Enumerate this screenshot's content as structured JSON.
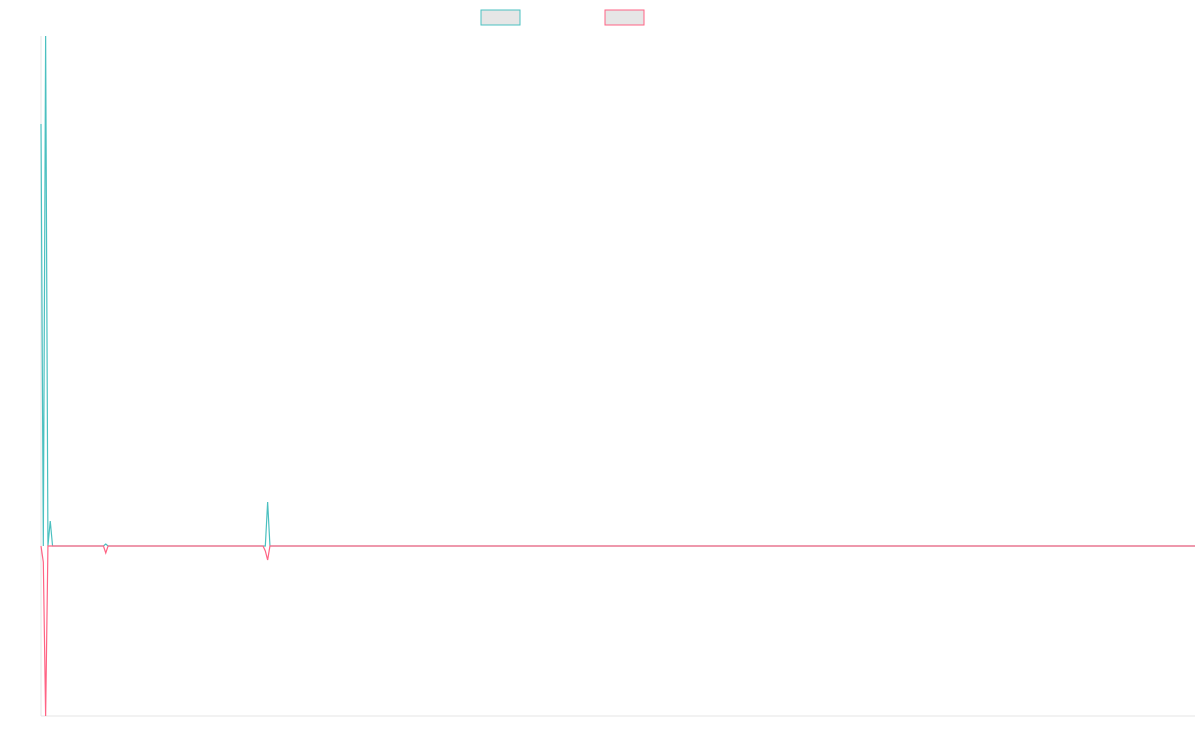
{
  "chart_data": {
    "type": "line",
    "title": "",
    "xlabel": "",
    "ylabel": "",
    "grid": false,
    "legend_position": "top-center",
    "x": [
      0,
      1,
      2,
      3,
      4,
      5,
      6,
      7,
      8,
      9,
      10,
      11,
      12,
      13,
      14,
      15,
      16,
      17,
      18,
      19,
      20,
      21,
      22,
      23,
      24,
      25,
      26,
      27,
      28,
      29,
      30,
      31,
      32,
      33,
      34,
      35,
      36,
      37,
      38,
      39,
      40,
      41,
      42,
      43,
      44,
      45,
      46,
      47,
      48,
      49,
      50,
      51,
      52,
      53,
      54,
      55,
      56,
      57,
      58,
      59,
      60,
      61,
      62,
      63,
      64,
      65,
      66,
      67,
      68,
      69,
      70,
      71,
      72,
      73,
      74,
      75,
      76,
      77,
      78,
      79,
      80,
      81,
      82,
      83,
      84,
      85,
      86,
      87,
      88,
      89,
      90,
      91,
      92,
      93,
      94,
      95,
      96,
      97,
      98,
      99,
      100,
      101,
      102,
      103,
      104,
      105,
      106,
      107,
      108,
      109,
      110,
      111,
      112,
      113,
      114,
      115,
      116,
      117,
      118,
      119,
      120,
      121,
      122,
      123,
      124,
      125,
      126,
      127,
      128,
      129,
      130,
      131,
      132,
      133,
      134,
      135,
      136,
      137,
      138,
      139,
      140,
      141,
      142,
      143,
      144,
      145,
      146,
      147,
      148,
      149,
      150,
      151,
      152,
      153,
      154,
      155,
      156,
      157,
      158,
      159,
      160,
      161,
      162,
      163,
      164,
      165,
      166,
      167,
      168,
      169,
      170,
      171,
      172,
      173,
      174,
      175,
      176,
      177,
      178,
      179,
      180,
      181,
      182,
      183,
      184,
      185,
      186,
      187,
      188,
      189,
      190,
      191,
      192,
      193,
      194,
      195,
      196,
      197,
      198,
      199,
      200,
      201,
      202,
      203,
      204,
      205,
      206,
      207,
      208,
      209,
      210,
      211,
      212,
      213,
      214,
      215,
      216,
      217,
      218,
      219,
      220,
      221,
      222,
      223,
      224,
      225,
      226,
      227,
      228,
      229,
      230,
      231,
      232,
      233,
      234,
      235,
      236,
      237,
      238,
      239,
      240,
      241,
      242,
      243,
      244,
      245,
      246,
      247,
      248,
      249,
      250,
      251,
      252,
      253,
      254,
      255,
      256,
      257,
      258,
      259,
      260,
      261,
      262,
      263,
      264,
      265,
      266,
      267,
      268,
      269,
      270,
      271,
      272,
      273,
      274,
      275,
      276,
      277,
      278,
      279,
      280,
      281,
      282,
      283,
      284,
      285,
      286,
      287,
      288,
      289,
      290,
      291,
      292,
      293,
      294,
      295,
      296,
      297,
      298,
      299,
      300,
      301,
      302,
      303,
      304,
      305,
      306,
      307,
      308,
      309,
      310,
      311,
      312,
      313,
      314,
      315,
      316,
      317,
      318,
      319,
      320,
      321,
      322,
      323,
      324,
      325,
      326,
      327,
      328,
      329,
      330,
      331,
      332,
      333,
      334,
      335,
      336,
      337,
      338,
      339,
      340,
      341,
      342,
      343,
      344,
      345,
      346,
      347,
      348,
      349,
      350,
      351,
      352,
      353,
      354,
      355,
      356,
      357,
      358,
      359,
      360,
      361,
      362,
      363,
      364,
      365,
      366,
      367,
      368,
      369,
      370,
      371,
      372,
      373,
      374,
      375,
      376,
      377,
      378,
      379,
      380,
      381,
      382,
      383,
      384,
      385,
      386,
      387,
      388,
      389,
      390,
      391,
      392,
      393,
      394,
      395,
      396,
      397,
      398,
      399,
      400,
      401,
      402,
      403,
      404,
      405,
      406,
      407,
      408,
      409,
      410,
      411,
      412,
      413,
      414,
      415,
      416,
      417,
      418,
      419,
      420,
      421,
      422,
      423,
      424,
      425,
      426,
      427,
      428,
      429,
      430,
      431,
      432,
      433,
      434,
      435,
      436,
      437,
      438,
      439,
      440,
      441,
      442,
      443,
      444,
      445,
      446,
      447,
      448,
      449,
      450,
      451,
      452,
      453,
      454,
      455,
      456,
      457,
      458,
      459,
      460,
      461,
      462,
      463,
      464,
      465,
      466,
      467,
      468,
      469,
      470,
      471,
      472,
      473,
      474,
      475,
      476,
      477,
      478,
      479,
      480,
      481,
      482,
      483,
      484,
      485,
      486,
      487,
      488,
      489,
      490,
      491,
      492,
      493,
      494,
      495,
      496,
      497,
      498,
      499
    ],
    "ylim": [
      -170,
      510
    ],
    "series": [
      {
        "color": "#4bc0c0",
        "fill": "#e6e6e6",
        "values_sparse": {
          "0": 422,
          "1": 0,
          "2": 510,
          "3": 0,
          "4": 25,
          "5": 0,
          "28": 2,
          "29": 0,
          "97": 0,
          "98": 44,
          "99": 0
        },
        "default": 0
      },
      {
        "color": "#ff6384",
        "fill": "#e6e6e6",
        "values_sparse": {
          "0": 0,
          "1": -16,
          "2": -170,
          "3": 0,
          "28": -7,
          "29": 0,
          "97": -5,
          "98": -14,
          "99": 0
        },
        "default": 0
      }
    ]
  }
}
